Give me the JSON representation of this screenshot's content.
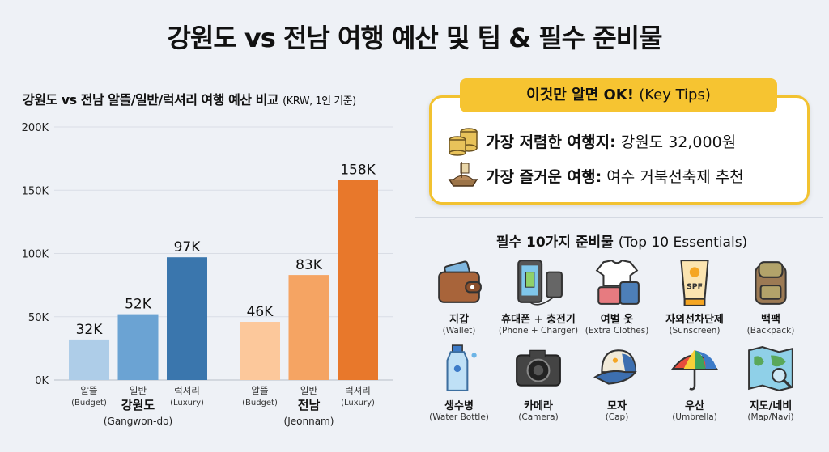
{
  "title": "강원도 vs 전남 여행 예산 및 팁 & 필수 준비물",
  "chart_data": {
    "type": "bar",
    "title": "강원도 vs 전남 알뜰/일반/럭셔리 여행 예산 비교",
    "subtitle": "(KRW, 1인 기준)",
    "ylim": [
      0,
      200000
    ],
    "yticks": [
      "0K",
      "50K",
      "100K",
      "150K",
      "200K"
    ],
    "grid": true,
    "groups": [
      {
        "name": "강원도",
        "name_en": "(Gangwon-do)",
        "colors": [
          "#aecde8",
          "#6ba3d3",
          "#3a76ad"
        ],
        "categories": [
          {
            "ko": "알뜰",
            "en": "(Budget)"
          },
          {
            "ko": "일반",
            "en": ""
          },
          {
            "ko": "럭셔리",
            "en": "(Luxury)"
          }
        ],
        "values": [
          32000,
          52000,
          97000
        ],
        "labels": [
          "32K",
          "52K",
          "97K"
        ]
      },
      {
        "name": "전남",
        "name_en": "(Jeonnam)",
        "colors": [
          "#fcc89b",
          "#f5a463",
          "#e8782b"
        ],
        "categories": [
          {
            "ko": "알뜰",
            "en": "(Budget)"
          },
          {
            "ko": "일반",
            "en": ""
          },
          {
            "ko": "럭셔리",
            "en": "(Luxury)"
          }
        ],
        "values": [
          46000,
          83000,
          158000
        ],
        "labels": [
          "46K",
          "83K",
          "158K"
        ]
      }
    ]
  },
  "tips": {
    "header": "이것만 알면 OK!",
    "header_en": "(Key Tips)",
    "items": [
      {
        "icon": "coins-icon",
        "label": "가장 저렴한 여행지:",
        "value": "강원도 32,000원"
      },
      {
        "icon": "turtle-ship-icon",
        "label": "가장 즐거운 여행:",
        "value": "여수 거북선축제 추천"
      }
    ],
    "accent": "#f6c431"
  },
  "essentials": {
    "title": "필수 10가지 준비물",
    "title_en": "(Top 10 Essentials)",
    "items": [
      {
        "icon": "wallet-icon",
        "label": "지갑",
        "en": "(Wallet)"
      },
      {
        "icon": "phone-charger-icon",
        "label": "휴대폰 + 충전기",
        "en": "(Phone + Charger)"
      },
      {
        "icon": "clothes-icon",
        "label": "여벌 옷",
        "en": "(Extra Clothes)"
      },
      {
        "icon": "sunscreen-icon",
        "label": "자외선차단제",
        "en": "(Sunscreen)",
        "badge": "SPF"
      },
      {
        "icon": "backpack-icon",
        "label": "백팩",
        "en": "(Backpack)"
      },
      {
        "icon": "water-bottle-icon",
        "label": "생수병",
        "en": "(Water Bottle)"
      },
      {
        "icon": "camera-icon",
        "label": "카메라",
        "en": "(Camera)"
      },
      {
        "icon": "cap-icon",
        "label": "모자",
        "en": "(Cap)"
      },
      {
        "icon": "umbrella-icon",
        "label": "우산",
        "en": "(Umbrella)"
      },
      {
        "icon": "map-icon",
        "label": "지도/네비",
        "en": "(Map/Navi)"
      }
    ]
  }
}
